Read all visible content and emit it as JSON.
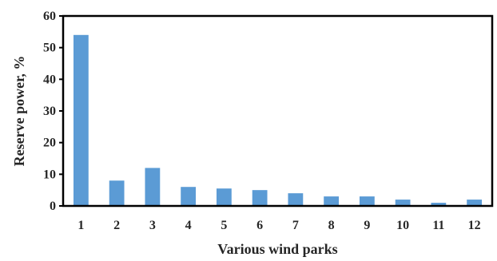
{
  "chart_data": {
    "type": "bar",
    "title": "",
    "xlabel": "Various wind parks",
    "ylabel": "Reserve power, %",
    "categories": [
      "1",
      "2",
      "3",
      "4",
      "5",
      "6",
      "7",
      "8",
      "9",
      "10",
      "11",
      "12"
    ],
    "values": [
      54,
      8,
      12,
      6,
      5.5,
      5,
      4,
      3,
      3,
      2,
      1,
      2
    ],
    "ylim": [
      0,
      60
    ],
    "yticks": [
      "0",
      "10",
      "20",
      "30",
      "40",
      "50",
      "60"
    ],
    "grid": false,
    "legend": "none",
    "bar_color": "#5b9bd5",
    "axis_color": "#000000"
  }
}
